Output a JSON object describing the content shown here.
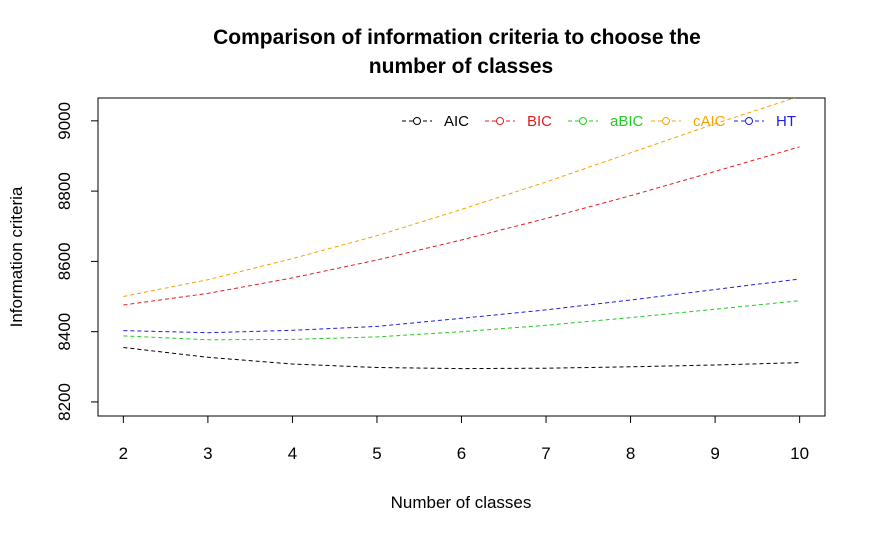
{
  "chart_data": {
    "type": "line",
    "title_line1": "Comparison of information criteria to choose the",
    "title_line2": "number of classes",
    "xlabel": "Number of classes",
    "ylabel": "Information criteria",
    "x": [
      2,
      3,
      4,
      5,
      6,
      7,
      8,
      9,
      10
    ],
    "xlim": [
      1.7,
      10.3
    ],
    "ylim": [
      8160,
      9065
    ],
    "x_ticks": [
      "2",
      "3",
      "4",
      "5",
      "6",
      "7",
      "8",
      "9",
      "10"
    ],
    "y_ticks": [
      "8200",
      "8400",
      "8600",
      "8800",
      "9000"
    ],
    "legend_position": "top-right",
    "series": [
      {
        "name": "AIC",
        "color": "#000000",
        "values": [
          8355,
          8327,
          8308,
          8298,
          8295,
          8296,
          8300,
          8305,
          8312
        ]
      },
      {
        "name": "BIC",
        "color": "#DF1F1F",
        "values": [
          8476,
          8509,
          8553,
          8604,
          8661,
          8722,
          8787,
          8856,
          8926
        ]
      },
      {
        "name": "aBIC",
        "color": "#22CC22",
        "values": [
          8388,
          8377,
          8378,
          8385,
          8400,
          8418,
          8440,
          8464,
          8488
        ]
      },
      {
        "name": "cAIC",
        "color": "#F5A300",
        "values": [
          8500,
          8548,
          8608,
          8673,
          8748,
          8826,
          8909,
          8992,
          9070
        ]
      },
      {
        "name": "HT",
        "color": "#1F1FDF",
        "values": [
          8403,
          8397,
          8404,
          8415,
          8438,
          8462,
          8490,
          8520,
          8550
        ]
      }
    ]
  }
}
